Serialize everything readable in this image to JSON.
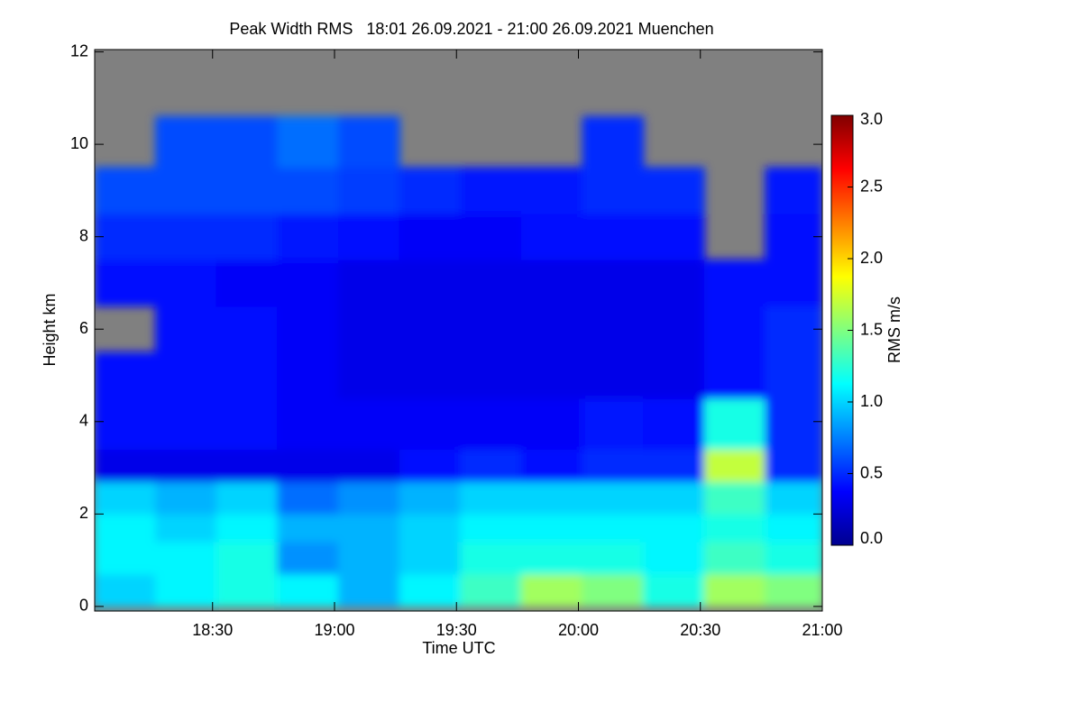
{
  "chart_data": {
    "type": "heatmap",
    "title": "Peak Width RMS   18:01 26.09.2021 - 21:00 26.09.2021 Muenchen",
    "xlabel": "Time UTC",
    "ylabel": "Height km",
    "xlim": [
      1081,
      1260
    ],
    "xticks": [
      {
        "value": 1110,
        "label": "18:30"
      },
      {
        "value": 1140,
        "label": "19:00"
      },
      {
        "value": 1170,
        "label": "19:30"
      },
      {
        "value": 1200,
        "label": "20:00"
      },
      {
        "value": 1230,
        "label": "20:30"
      },
      {
        "value": 1260,
        "label": "21:00"
      }
    ],
    "ylim": [
      -0.1,
      12.05
    ],
    "yticks": [
      0,
      2,
      4,
      6,
      8,
      10,
      12
    ],
    "x_edges": [
      1081,
      1096,
      1111,
      1126,
      1141,
      1156,
      1171,
      1186,
      1201,
      1216,
      1231,
      1246,
      1260
    ],
    "y_edges": [
      0,
      0.7,
      1.4,
      2.0,
      2.7,
      3.4,
      4.5,
      5.5,
      6.5,
      7.5,
      8.5,
      9.5,
      10.6
    ],
    "z": [
      [
        1.0,
        1.1,
        1.2,
        1.1,
        0.9,
        1.1,
        1.3,
        1.6,
        1.5,
        1.2,
        1.6,
        1.5
      ],
      [
        1.1,
        1.1,
        1.2,
        0.8,
        0.9,
        1.0,
        1.2,
        1.2,
        1.2,
        1.1,
        1.3,
        1.2
      ],
      [
        1.1,
        1.0,
        1.1,
        0.9,
        0.9,
        1.0,
        1.1,
        1.1,
        1.1,
        1.1,
        1.2,
        1.1
      ],
      [
        1.0,
        0.9,
        1.0,
        0.7,
        0.8,
        0.9,
        1.0,
        1.0,
        1.0,
        1.0,
        1.3,
        1.0
      ],
      [
        0.3,
        0.3,
        0.3,
        0.3,
        0.3,
        0.4,
        0.5,
        0.4,
        0.5,
        0.5,
        1.7,
        0.5
      ],
      [
        0.4,
        0.4,
        0.4,
        0.35,
        0.35,
        0.35,
        0.35,
        0.35,
        0.45,
        0.4,
        1.2,
        0.5
      ],
      [
        0.4,
        0.4,
        0.4,
        0.35,
        0.3,
        0.3,
        0.3,
        0.3,
        0.3,
        0.3,
        0.4,
        0.5
      ],
      [
        null,
        0.4,
        0.4,
        0.35,
        0.3,
        0.3,
        0.3,
        0.3,
        0.3,
        0.3,
        0.4,
        0.5
      ],
      [
        0.4,
        0.4,
        0.35,
        0.35,
        0.3,
        0.3,
        0.3,
        0.3,
        0.3,
        0.3,
        0.4,
        0.4
      ],
      [
        0.5,
        0.5,
        0.5,
        0.45,
        0.4,
        0.35,
        0.35,
        0.4,
        0.4,
        0.4,
        null,
        0.4
      ],
      [
        0.6,
        0.6,
        0.6,
        0.6,
        0.55,
        0.5,
        0.45,
        0.45,
        0.5,
        0.5,
        null,
        0.45
      ],
      [
        null,
        0.6,
        0.6,
        0.7,
        0.6,
        null,
        null,
        null,
        0.5,
        null,
        null,
        null
      ]
    ],
    "colormap": "jet",
    "missing_color": "#808080",
    "colorbar_label": "RMS m/s",
    "clim": [
      0,
      3
    ],
    "cticks": [
      {
        "value": 0,
        "label": "0.0"
      },
      0.5,
      {
        "value": 1,
        "label": "1.0"
      },
      1.5,
      {
        "value": 2,
        "label": "2.0"
      },
      2.5,
      {
        "value": 3,
        "label": "3.0"
      }
    ]
  }
}
